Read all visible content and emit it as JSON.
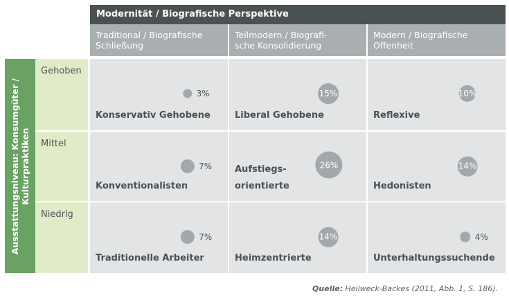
{
  "header": {
    "title": "Modernität / Biografische Perspektive"
  },
  "columns": [
    {
      "line1": "Traditional / Biografische",
      "line2": "Schließung"
    },
    {
      "line1": "Teilmodern / Biografi-",
      "line2": "sche Konsolidierung"
    },
    {
      "line1": "Modern / Biografische",
      "line2": "Offenheit"
    }
  ],
  "side_axis": {
    "line1": "Ausstattungsniveau: Konsumgüter /",
    "line2": "Kulturpraktiken"
  },
  "rows": [
    "Gehoben",
    "Mittel",
    "Niedrig"
  ],
  "cells": [
    {
      "row": 0,
      "col": 0,
      "lines": [
        "Konservativ Gehobene"
      ],
      "percent": "3%",
      "value": 3
    },
    {
      "row": 0,
      "col": 1,
      "lines": [
        "Liberal Gehobene"
      ],
      "percent": "15%",
      "value": 15
    },
    {
      "row": 0,
      "col": 2,
      "lines": [
        "Reflexive"
      ],
      "percent": "10%",
      "value": 10
    },
    {
      "row": 1,
      "col": 0,
      "lines": [
        "Konventionalisten"
      ],
      "percent": "7%",
      "value": 7
    },
    {
      "row": 1,
      "col": 1,
      "lines": [
        "Aufstiegs-",
        "orientierte"
      ],
      "percent": "26%",
      "value": 26
    },
    {
      "row": 1,
      "col": 2,
      "lines": [
        "Hedonisten"
      ],
      "percent": "14%",
      "value": 14
    },
    {
      "row": 2,
      "col": 0,
      "lines": [
        "Traditionelle Arbeiter"
      ],
      "percent": "7%",
      "value": 7
    },
    {
      "row": 2,
      "col": 1,
      "lines": [
        "Heimzentrierte"
      ],
      "percent": "14%",
      "value": 14
    },
    {
      "row": 2,
      "col": 2,
      "lines": [
        "Unterhaltungssuchende"
      ],
      "percent": "4%",
      "value": 4
    }
  ],
  "source": {
    "label": "Quelle:",
    "text": "Heilweck-Backes (2011, Abb. 1, S. 186)."
  },
  "colors": {
    "header_dark": "#4a5153",
    "column_header": "#a9aeb1",
    "side_green": "#6aa264",
    "row_light_green": "#e0ecc8",
    "cell_bg": "#e2e4e5",
    "bubble": "#a3a8ab"
  }
}
